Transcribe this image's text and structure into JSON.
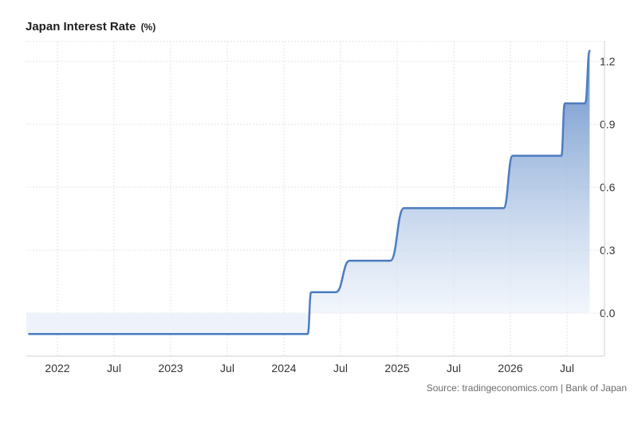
{
  "title": "Japan Interest Rate",
  "unit": "(%)",
  "source": "Source: tradingeconomics.com | Bank of Japan",
  "chart_data": {
    "type": "area",
    "step": true,
    "color": "#4a7cc0",
    "grid": true,
    "ylim": [
      -0.15,
      1.3
    ],
    "x_ticks": [
      {
        "label": "2022",
        "t": 2022.0
      },
      {
        "label": "Jul",
        "t": 2022.5
      },
      {
        "label": "2023",
        "t": 2023.0
      },
      {
        "label": "Jul",
        "t": 2023.5
      },
      {
        "label": "2024",
        "t": 2024.0
      },
      {
        "label": "Jul",
        "t": 2024.5
      },
      {
        "label": "2025",
        "t": 2025.0
      },
      {
        "label": "Jul",
        "t": 2025.5
      },
      {
        "label": "2026",
        "t": 2026.0
      },
      {
        "label": "Jul",
        "t": 2026.5
      }
    ],
    "y_ticks": [
      0.0,
      0.3,
      0.6,
      0.9,
      1.2
    ],
    "y_tick_labels": [
      "0.0",
      "0.3",
      "0.6",
      "0.9",
      "1.2"
    ],
    "points": [
      {
        "t": 2021.75,
        "v": -0.1
      },
      {
        "t": 2024.21,
        "v": -0.1
      },
      {
        "t": 2024.24,
        "v": 0.1
      },
      {
        "t": 2024.46,
        "v": 0.1
      },
      {
        "t": 2024.58,
        "v": 0.25
      },
      {
        "t": 2024.94,
        "v": 0.25
      },
      {
        "t": 2025.06,
        "v": 0.5
      },
      {
        "t": 2025.94,
        "v": 0.5
      },
      {
        "t": 2026.02,
        "v": 0.75
      },
      {
        "t": 2026.45,
        "v": 0.75
      },
      {
        "t": 2026.48,
        "v": 1.0
      },
      {
        "t": 2026.66,
        "v": 1.0
      },
      {
        "t": 2026.7,
        "v": 1.25
      }
    ]
  }
}
